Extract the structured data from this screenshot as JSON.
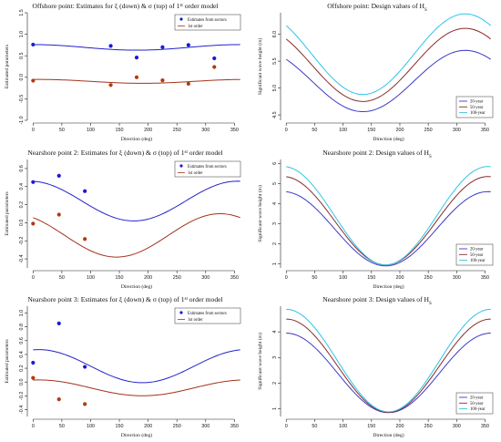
{
  "chart_data": [
    {
      "type": "line",
      "title": "Offshore point: Estimates for ξ (down) & σ (top) of 1st order model",
      "title_main": "Offshore point: Estimates for ξ (down) & σ (top) of 1",
      "title_sup": "st",
      "title_end": " order model",
      "xlabel": "Direction (deg)",
      "ylabel": "Estimated parameters",
      "xlim": [
        -10,
        370
      ],
      "ylim": [
        -1.0,
        1.5
      ],
      "xticks": [
        0,
        50,
        100,
        150,
        200,
        250,
        300,
        350
      ],
      "yticks": [
        -1.0,
        -0.5,
        0.0,
        0.5,
        1.0,
        1.5
      ],
      "ytick_labels": [
        "-1.0",
        "-0.5",
        "0.0",
        "0.5",
        "1.0",
        "1.5"
      ],
      "legend": {
        "position": "top-right",
        "entries": [
          "Estimates from sectors",
          "1st order"
        ]
      },
      "series": [
        {
          "name": "Estimates from sectors",
          "kind": "points",
          "color": "#1a1ad6",
          "x": [
            0,
            135,
            180,
            225,
            270,
            315
          ],
          "y": [
            0.76,
            0.73,
            0.46,
            0.7,
            0.75,
            0.44
          ]
        },
        {
          "name": "Estimates from sectors",
          "kind": "points",
          "color": "#b23a10",
          "x": [
            0,
            135,
            180,
            225,
            270,
            315
          ],
          "y": [
            -0.08,
            -0.18,
            0.0,
            -0.07,
            -0.15,
            0.24
          ]
        },
        {
          "name": "1st order",
          "kind": "line",
          "color": "#2222cc",
          "mean": 0.695,
          "amp": 0.065,
          "phase": 0
        },
        {
          "name": "1st order",
          "kind": "line",
          "color": "#a3331a",
          "mean": -0.095,
          "amp": 0.045,
          "phase": 10
        }
      ]
    },
    {
      "type": "line",
      "title": "Offshore point: Design values of HS",
      "title_main": "Offshore point: Design values of H",
      "title_sub": "S",
      "xlabel": "Direction (deg)",
      "ylabel": "Significant wave height (m)",
      "xlim": [
        -10,
        370
      ],
      "ylim": [
        4.4,
        6.4
      ],
      "xticks": [
        0,
        50,
        100,
        150,
        200,
        250,
        300,
        350
      ],
      "yticks": [
        4.5,
        5.0,
        5.5,
        6.0
      ],
      "ytick_labels": [
        "4.5",
        "5.0",
        "5.5",
        "6.0"
      ],
      "legend": {
        "position": "bottom-right",
        "entries": [
          "20-year",
          "50-year",
          "100-year"
        ]
      },
      "series": [
        {
          "name": "20-year",
          "kind": "line",
          "color": "#3a3ac8",
          "mean": 5.13,
          "amp": 0.57,
          "phase": 315
        },
        {
          "name": "50-year",
          "kind": "line",
          "color": "#8b2a2a",
          "mean": 5.43,
          "amp": 0.68,
          "phase": 315
        },
        {
          "name": "100-year",
          "kind": "line",
          "color": "#2ec4e6",
          "mean": 5.63,
          "amp": 0.75,
          "phase": 315
        }
      ]
    },
    {
      "type": "line",
      "title": "Nearshore point 2: Estimates for ξ (down) & σ (top) of 1st order model",
      "title_main": "Nearshore point 2: Estimates for ξ (down) & σ (top) of 1",
      "title_sup": "st",
      "title_end": " order model",
      "xlabel": "Direction (deg)",
      "ylabel": "Estimated parameters",
      "xlim": [
        -10,
        370
      ],
      "ylim": [
        -0.5,
        0.7
      ],
      "xticks": [
        0,
        50,
        100,
        150,
        200,
        250,
        300,
        350
      ],
      "yticks": [
        -0.4,
        -0.2,
        0.0,
        0.2,
        0.4,
        0.6
      ],
      "ytick_labels": [
        "-0.4",
        "-0.2",
        "0.0",
        "0.2",
        "0.4",
        "0.6"
      ],
      "legend": {
        "position": "top-right",
        "entries": [
          "Estimates from sectors",
          "1st order"
        ]
      },
      "series": [
        {
          "name": "Estimates from sectors",
          "kind": "points",
          "color": "#1a1ad6",
          "x": [
            0,
            45,
            90
          ],
          "y": [
            0.45,
            0.52,
            0.35
          ]
        },
        {
          "name": "Estimates from sectors",
          "kind": "points",
          "color": "#b23a10",
          "x": [
            0,
            45,
            90
          ],
          "y": [
            -0.01,
            0.09,
            -0.18
          ]
        },
        {
          "name": "1st order",
          "kind": "line",
          "color": "#2222cc",
          "mean": 0.24,
          "amp": 0.22,
          "phase": 355
        },
        {
          "name": "1st order",
          "kind": "line",
          "color": "#a3331a",
          "mean": -0.14,
          "amp": 0.24,
          "phase": 325
        }
      ]
    },
    {
      "type": "line",
      "title": "Nearshore point 2: Design values of HS",
      "title_main": "Nearshore point 2: Design values of H",
      "title_sub": "S",
      "xlabel": "Direction (deg)",
      "ylabel": "Significant wave height (m)",
      "xlim": [
        -10,
        370
      ],
      "ylim": [
        0.8,
        6.2
      ],
      "xticks": [
        0,
        50,
        100,
        150,
        200,
        250,
        300,
        350
      ],
      "yticks": [
        1,
        2,
        3,
        4,
        5,
        6
      ],
      "ytick_labels": [
        "1",
        "2",
        "3",
        "4",
        "5",
        "6"
      ],
      "legend": {
        "position": "bottom-right",
        "entries": [
          "20-year",
          "50-year",
          "100-year"
        ]
      },
      "series": [
        {
          "name": "20-year",
          "kind": "line",
          "color": "#3a3ac8",
          "mean": 2.75,
          "amp": 1.85,
          "phase": 355
        },
        {
          "name": "50-year",
          "kind": "line",
          "color": "#8b2a2a",
          "mean": 3.15,
          "amp": 2.2,
          "phase": 355
        },
        {
          "name": "100-year",
          "kind": "line",
          "color": "#2ec4e6",
          "mean": 3.4,
          "amp": 2.45,
          "phase": 355
        }
      ]
    },
    {
      "type": "line",
      "title": "Nearshore point 3: Estimates for ξ (down) & σ (top) of 1st order model",
      "title_main": "Nearshore point 3: Estimates for ξ (down) & σ (top) of 1",
      "title_sup": "st",
      "title_end": " order model",
      "xlabel": "Direction (deg)",
      "ylabel": "Estimated parameters",
      "xlim": [
        -10,
        370
      ],
      "ylim": [
        -0.5,
        1.1
      ],
      "xticks": [
        0,
        50,
        100,
        150,
        200,
        250,
        300,
        350
      ],
      "yticks": [
        -0.4,
        -0.2,
        0.0,
        0.2,
        0.4,
        0.6,
        0.8,
        1.0
      ],
      "ytick_labels": [
        "-0.4",
        "-0.2",
        "0.0",
        "0.2",
        "0.4",
        "0.6",
        "0.8",
        "1.0"
      ],
      "legend": {
        "position": "top-right",
        "entries": [
          "Estimates from sectors",
          "1st order"
        ]
      },
      "series": [
        {
          "name": "Estimates from sectors",
          "kind": "points",
          "color": "#1a1ad6",
          "x": [
            0,
            45,
            90
          ],
          "y": [
            0.28,
            0.85,
            0.22
          ]
        },
        {
          "name": "Estimates from sectors",
          "kind": "points",
          "color": "#b23a10",
          "x": [
            0,
            45,
            90
          ],
          "y": [
            0.06,
            -0.25,
            -0.32
          ]
        },
        {
          "name": "1st order",
          "kind": "line",
          "color": "#2222cc",
          "mean": 0.23,
          "amp": 0.24,
          "phase": 10
        },
        {
          "name": "1st order",
          "kind": "line",
          "color": "#a3331a",
          "mean": -0.085,
          "amp": 0.115,
          "phase": 10
        }
      ]
    },
    {
      "type": "line",
      "title": "Nearshore point 3: Design values of HS",
      "title_main": "Nearshore point 3: Design values of H",
      "title_sub": "S",
      "xlabel": "Direction (deg)",
      "ylabel": "Significant wave height (m)",
      "xlim": [
        -10,
        370
      ],
      "ylim": [
        0.7,
        5.0
      ],
      "xticks": [
        0,
        50,
        100,
        150,
        200,
        250,
        300,
        350
      ],
      "yticks": [
        1,
        2,
        3,
        4
      ],
      "ytick_labels": [
        "1",
        "2",
        "3",
        "4"
      ],
      "legend": {
        "position": "bottom-right",
        "entries": [
          "20-year",
          "50-year",
          "100-year"
        ]
      },
      "series": [
        {
          "name": "20-year",
          "kind": "line",
          "color": "#3a3ac8",
          "mean": 2.4,
          "amp": 1.55,
          "phase": 0
        },
        {
          "name": "50-year",
          "kind": "line",
          "color": "#8b2a2a",
          "mean": 2.68,
          "amp": 1.82,
          "phase": 0
        },
        {
          "name": "100-year",
          "kind": "line",
          "color": "#2ec4e6",
          "mean": 2.88,
          "amp": 2.0,
          "phase": 0
        }
      ]
    }
  ]
}
